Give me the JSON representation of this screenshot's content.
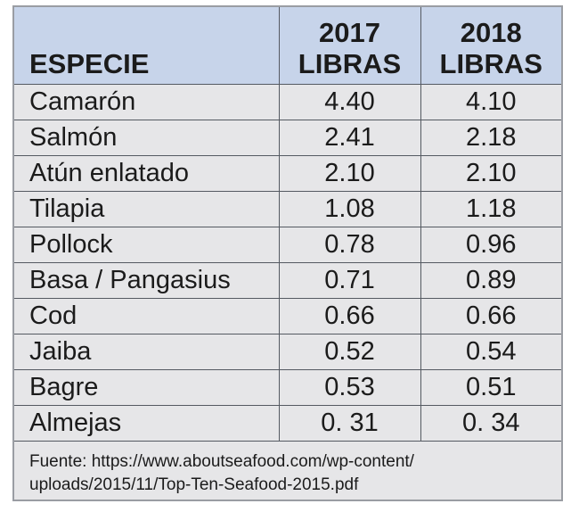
{
  "chart_data": {
    "type": "table",
    "columns": [
      "ESPECIE",
      "2017 LIBRAS",
      "2018 LIBRAS"
    ],
    "header": {
      "species": "ESPECIE",
      "y2017_line1": "2017",
      "y2017_line2": "LIBRAS",
      "y2018_line1": "2018",
      "y2018_line2": "LIBRAS"
    },
    "rows": [
      {
        "species": "Camarón",
        "y2017": "4.40",
        "y2018": "4.10"
      },
      {
        "species": "Salmón",
        "y2017": "2.41",
        "y2018": "2.18"
      },
      {
        "species": "Atún enlatado",
        "y2017": "2.10",
        "y2018": "2.10"
      },
      {
        "species": "Tilapia",
        "y2017": "1.08",
        "y2018": "1.18"
      },
      {
        "species": "Pollock",
        "y2017": "0.78",
        "y2018": "0.96"
      },
      {
        "species": "Basa / Pangasius",
        "y2017": "0.71",
        "y2018": "0.89"
      },
      {
        "species": "Cod",
        "y2017": "0.66",
        "y2018": "0.66"
      },
      {
        "species": "Jaiba",
        "y2017": "0.52",
        "y2018": "0.54"
      },
      {
        "species": "Bagre",
        "y2017": "0.53",
        "y2018": "0.51"
      },
      {
        "species": "Almejas",
        "y2017": "0. 31",
        "y2018": "0. 34"
      }
    ],
    "source_line1": "Fuente: https://www.aboutseafood.com/wp-content/",
    "source_line2": "uploads/2015/11/Top-Ten-Seafood-2015.pdf"
  },
  "colors": {
    "header_background": "#c7d4ea",
    "body_background": "#e6e6e8",
    "grid_lines": "#555a62",
    "outer_border": "#9a9da3"
  }
}
